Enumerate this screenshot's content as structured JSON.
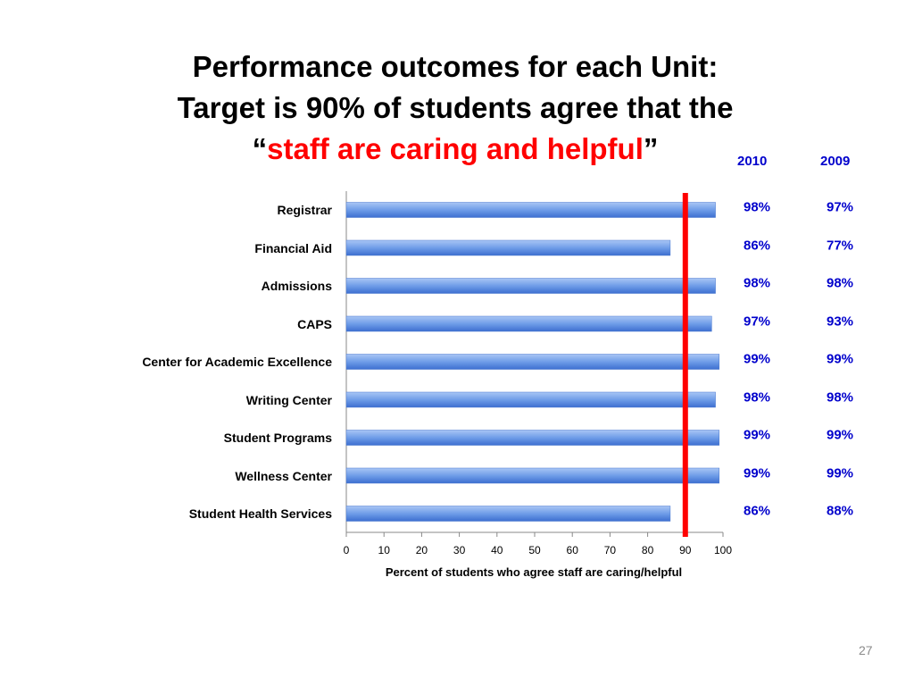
{
  "title": {
    "line1": "Performance outcomes for each Unit:",
    "line2": "Target is 90% of students agree that the",
    "quote_open": "“",
    "accent": "staff are caring and helpful",
    "quote_close": "”"
  },
  "columns": {
    "col_2010": "2010",
    "col_2009": "2009"
  },
  "page_number": "27",
  "colors": {
    "bar": "#5b8fe0",
    "target_line": "#ff0000",
    "accent_text": "#ff0000",
    "table_text": "#0000cc"
  },
  "chart_data": {
    "type": "bar",
    "orientation": "horizontal",
    "categories": [
      "Registrar",
      "Financial Aid",
      "Admissions",
      "CAPS",
      "Center for Academic Excellence",
      "Writing Center",
      "Student Programs",
      "Wellness Center",
      "Student Health Services"
    ],
    "values": [
      98,
      86,
      98,
      97,
      99,
      98,
      99,
      99,
      86
    ],
    "xlabel": "Percent of students who agree staff are caring/helpful",
    "xlim": [
      0,
      100
    ],
    "xticks": [
      "0",
      "10",
      "20",
      "30",
      "40",
      "50",
      "60",
      "70",
      "80",
      "90",
      "100"
    ],
    "target": 90,
    "grid": false,
    "legend": "none"
  },
  "table": {
    "rows": [
      {
        "v2010": "98%",
        "v2009": "97%"
      },
      {
        "v2010": "86%",
        "v2009": "77%"
      },
      {
        "v2010": "98%",
        "v2009": "98%"
      },
      {
        "v2010": "97%",
        "v2009": "93%"
      },
      {
        "v2010": "99%",
        "v2009": "99%"
      },
      {
        "v2010": "98%",
        "v2009": "98%"
      },
      {
        "v2010": "99%",
        "v2009": "99%"
      },
      {
        "v2010": "99%",
        "v2009": "99%"
      },
      {
        "v2010": "86%",
        "v2009": "88%"
      }
    ]
  }
}
